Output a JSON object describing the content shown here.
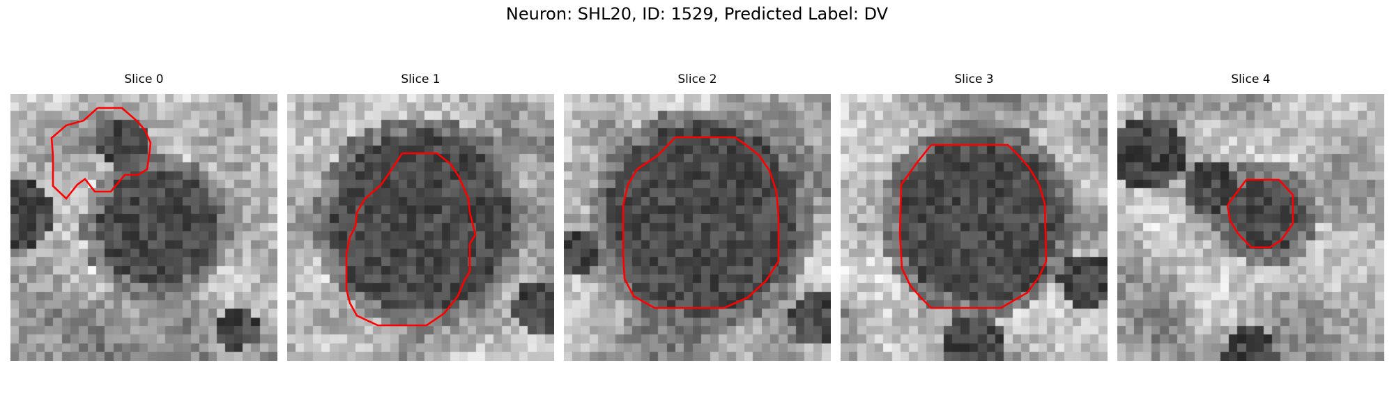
{
  "figure": {
    "title": "Neuron: SHL20, ID: 1529, Predicted Label: DV",
    "outline_color": "#ff0000"
  },
  "panels": [
    {
      "title": "Slice 0",
      "dark_center": [
        0.55,
        0.5
      ],
      "dark_radius": 0.22,
      "extra_dark": [
        [
          0.05,
          0.45,
          0.12
        ],
        [
          0.42,
          0.18,
          0.1
        ],
        [
          0.85,
          0.88,
          0.08
        ]
      ]
    },
    {
      "title": "Slice 1",
      "dark_center": [
        0.5,
        0.48
      ],
      "dark_radius": 0.34,
      "extra_dark": [
        [
          0.95,
          0.8,
          0.1
        ]
      ]
    },
    {
      "title": "Slice 2",
      "dark_center": [
        0.52,
        0.47
      ],
      "dark_radius": 0.36,
      "extra_dark": [
        [
          0.95,
          0.85,
          0.1
        ],
        [
          0.05,
          0.6,
          0.08
        ]
      ]
    },
    {
      "title": "Slice 3",
      "dark_center": [
        0.52,
        0.47
      ],
      "dark_radius": 0.31,
      "extra_dark": [
        [
          0.92,
          0.7,
          0.1
        ],
        [
          0.5,
          0.95,
          0.12
        ]
      ]
    },
    {
      "title": "Slice 4",
      "dark_center": [
        0.56,
        0.45
      ],
      "dark_radius": 0.14,
      "extra_dark": [
        [
          0.12,
          0.22,
          0.14
        ],
        [
          0.35,
          0.35,
          0.1
        ],
        [
          0.5,
          0.98,
          0.1
        ]
      ]
    }
  ]
}
